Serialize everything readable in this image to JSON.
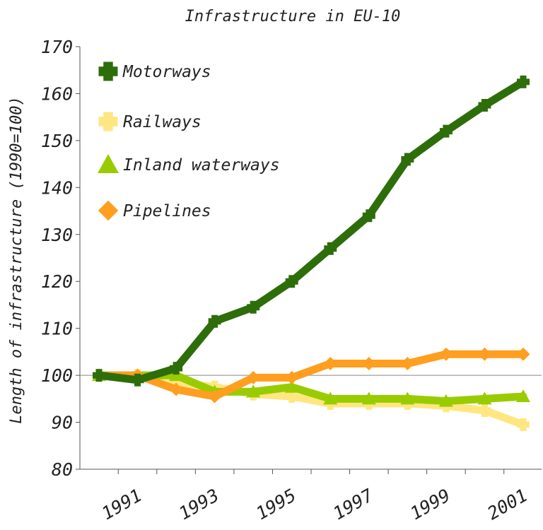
{
  "chart_data": {
    "type": "line",
    "title": "Infrastructure in EU-10",
    "ylabel": "Length of infrastructure (1990=100)",
    "xlabel": "",
    "ylim": [
      80,
      170
    ],
    "yticks": [
      80,
      90,
      100,
      110,
      120,
      130,
      140,
      150,
      160,
      170
    ],
    "x": [
      1990,
      1991,
      1992,
      1993,
      1994,
      1995,
      1996,
      1997,
      1998,
      1999,
      2000,
      2001
    ],
    "xtick_labels": [
      "1991",
      "1993",
      "1995",
      "1997",
      "1999",
      "2001"
    ],
    "reference_line": 100,
    "grid": false,
    "legend_position": "top-left",
    "series": [
      {
        "name": "Motorways",
        "color": "#2e6e0a",
        "marker": "plus",
        "values": [
          100,
          99,
          101.5,
          111.5,
          114.5,
          120,
          127,
          134,
          146,
          152,
          157.5,
          162.5
        ]
      },
      {
        "name": "Railways",
        "color": "#ffe680",
        "marker": "plus",
        "values": [
          100,
          100,
          98.5,
          97.5,
          96,
          95.5,
          94,
          94,
          94,
          93.5,
          92.5,
          89.5
        ]
      },
      {
        "name": "Inland waterways",
        "color": "#99cc00",
        "marker": "triangle",
        "values": [
          100,
          100,
          100,
          96.5,
          96.5,
          97.5,
          95,
          95,
          95,
          94.5,
          95,
          95.5
        ]
      },
      {
        "name": "Pipelines",
        "color": "#ff9e1f",
        "marker": "diamond",
        "values": [
          100,
          100,
          97,
          95.5,
          99.5,
          99.5,
          102.5,
          102.5,
          102.5,
          104.5,
          104.5,
          104.5
        ]
      }
    ]
  }
}
